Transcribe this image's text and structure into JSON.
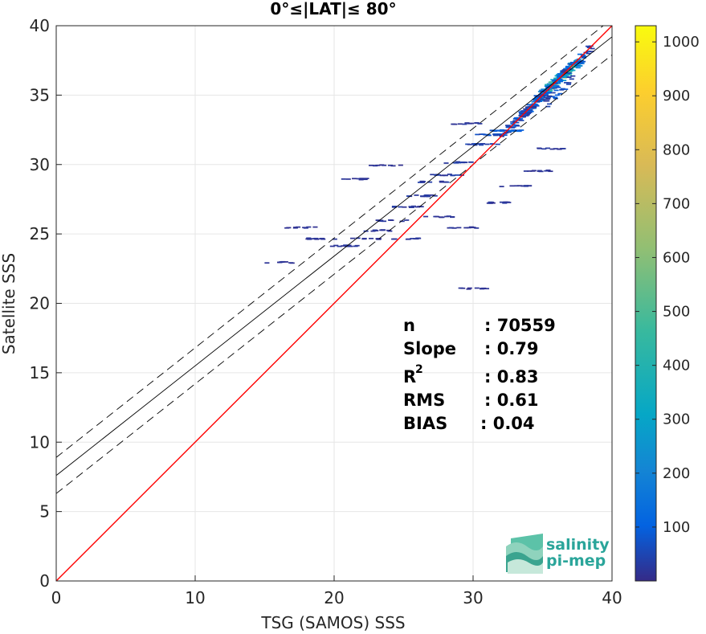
{
  "chart_data": {
    "type": "heatmap",
    "title": "0°≤|LAT|≤ 80°",
    "xlabel": "TSG (SAMOS) SSS",
    "ylabel": "Satellite SSS",
    "xlim": [
      0,
      40
    ],
    "ylim": [
      0,
      40
    ],
    "xticks": [
      "0",
      "10",
      "20",
      "30",
      "40"
    ],
    "yticks": [
      "0",
      "5",
      "10",
      "15",
      "20",
      "25",
      "30",
      "35",
      "40"
    ],
    "grid": true,
    "colorbar": {
      "range": [
        0,
        1030
      ],
      "ticks": [
        "100",
        "200",
        "300",
        "400",
        "500",
        "600",
        "700",
        "800",
        "900",
        "1000"
      ],
      "colormap": "parula"
    },
    "lines": {
      "identity": {
        "slope": 1,
        "intercept": 0,
        "color": "#ff0000"
      },
      "regression": {
        "slope": 0.79,
        "intercept": 7.6,
        "color": "#000000"
      },
      "upper_bound": {
        "slope": 0.79,
        "intercept": 8.9,
        "color": "#000000",
        "style": "dashed"
      },
      "lower_bound": {
        "slope": 0.79,
        "intercept": 6.3,
        "color": "#000000",
        "style": "dashed"
      }
    },
    "clusters": [
      {
        "x": 36.2,
        "y": 36.4,
        "count": 1000
      },
      {
        "x": 35.6,
        "y": 35.9,
        "count": 720
      },
      {
        "x": 36.8,
        "y": 36.8,
        "count": 600
      },
      {
        "x": 35.2,
        "y": 35.5,
        "count": 420
      },
      {
        "x": 34.8,
        "y": 35.0,
        "count": 300
      },
      {
        "x": 34.3,
        "y": 34.5,
        "count": 220
      },
      {
        "x": 33.8,
        "y": 34.0,
        "count": 180
      },
      {
        "x": 33.3,
        "y": 33.4,
        "count": 140
      },
      {
        "x": 32.8,
        "y": 33.0,
        "count": 110
      },
      {
        "x": 32.3,
        "y": 32.5,
        "count": 90
      },
      {
        "x": 37.4,
        "y": 37.6,
        "count": 160
      },
      {
        "x": 36.0,
        "y": 35.3,
        "count": 130
      },
      {
        "x": 31.0,
        "y": 32.2,
        "count": 60
      },
      {
        "x": 30.5,
        "y": 31.5,
        "count": 40
      },
      {
        "x": 29.0,
        "y": 30.2,
        "count": 35
      },
      {
        "x": 28.0,
        "y": 29.3,
        "count": 30
      },
      {
        "x": 27.0,
        "y": 28.8,
        "count": 30
      },
      {
        "x": 26.0,
        "y": 27.8,
        "count": 25
      },
      {
        "x": 25.0,
        "y": 27.0,
        "count": 25
      },
      {
        "x": 24.0,
        "y": 26.0,
        "count": 20
      },
      {
        "x": 23.0,
        "y": 25.3,
        "count": 20
      },
      {
        "x": 22.0,
        "y": 24.7,
        "count": 20
      },
      {
        "x": 20.5,
        "y": 24.2,
        "count": 20
      },
      {
        "x": 19.0,
        "y": 24.7,
        "count": 20
      },
      {
        "x": 17.5,
        "y": 25.5,
        "count": 15
      },
      {
        "x": 16.0,
        "y": 23.0,
        "count": 15
      },
      {
        "x": 25.0,
        "y": 24.7,
        "count": 20
      },
      {
        "x": 27.5,
        "y": 26.3,
        "count": 20
      },
      {
        "x": 29.0,
        "y": 25.5,
        "count": 20
      },
      {
        "x": 32.0,
        "y": 27.3,
        "count": 20
      },
      {
        "x": 33.0,
        "y": 28.5,
        "count": 20
      },
      {
        "x": 34.5,
        "y": 29.6,
        "count": 20
      },
      {
        "x": 35.5,
        "y": 31.2,
        "count": 20
      },
      {
        "x": 30.0,
        "y": 21.1,
        "count": 15
      },
      {
        "x": 23.5,
        "y": 30.0,
        "count": 15
      },
      {
        "x": 21.5,
        "y": 29.0,
        "count": 15
      },
      {
        "x": 29.5,
        "y": 33.0,
        "count": 20
      }
    ]
  },
  "stats": {
    "n_label": "n",
    "n_value": ": 70559",
    "slope_label": "Slope",
    "slope_value": ": 0.79",
    "r2_label": "R",
    "r2_sup": "2",
    "r2_value": ": 0.83",
    "rms_label": "RMS",
    "rms_value": ": 0.61",
    "bias_label": "BIAS",
    "bias_value": ": 0.04"
  },
  "logo": {
    "line1": "salinity",
    "line2": "pi-mep",
    "color": "#2aa59a"
  }
}
